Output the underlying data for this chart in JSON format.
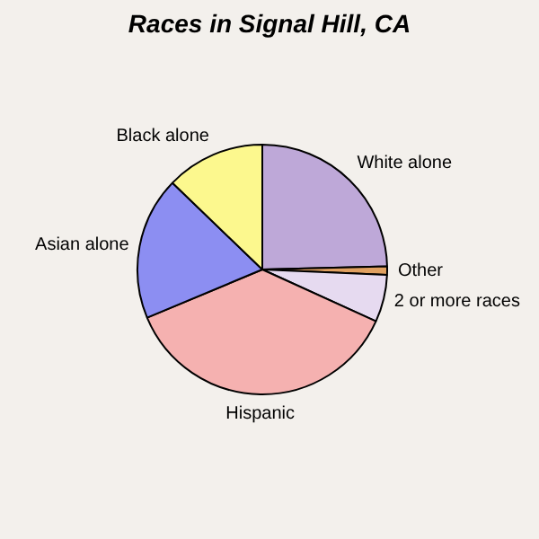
{
  "chart_data": {
    "type": "pie",
    "title": "Races in Signal Hill, CA",
    "categories": [
      "White alone",
      "Other",
      "2 or more races",
      "Hispanic",
      "Asian alone",
      "Black alone"
    ],
    "values": [
      24.6,
      1.1,
      6.1,
      36.9,
      18.5,
      12.8
    ],
    "colors": [
      "#bea8d8",
      "#e0a060",
      "#e6daf0",
      "#f5b1b0",
      "#8c8ef2",
      "#fcf88e"
    ],
    "legend": false
  }
}
